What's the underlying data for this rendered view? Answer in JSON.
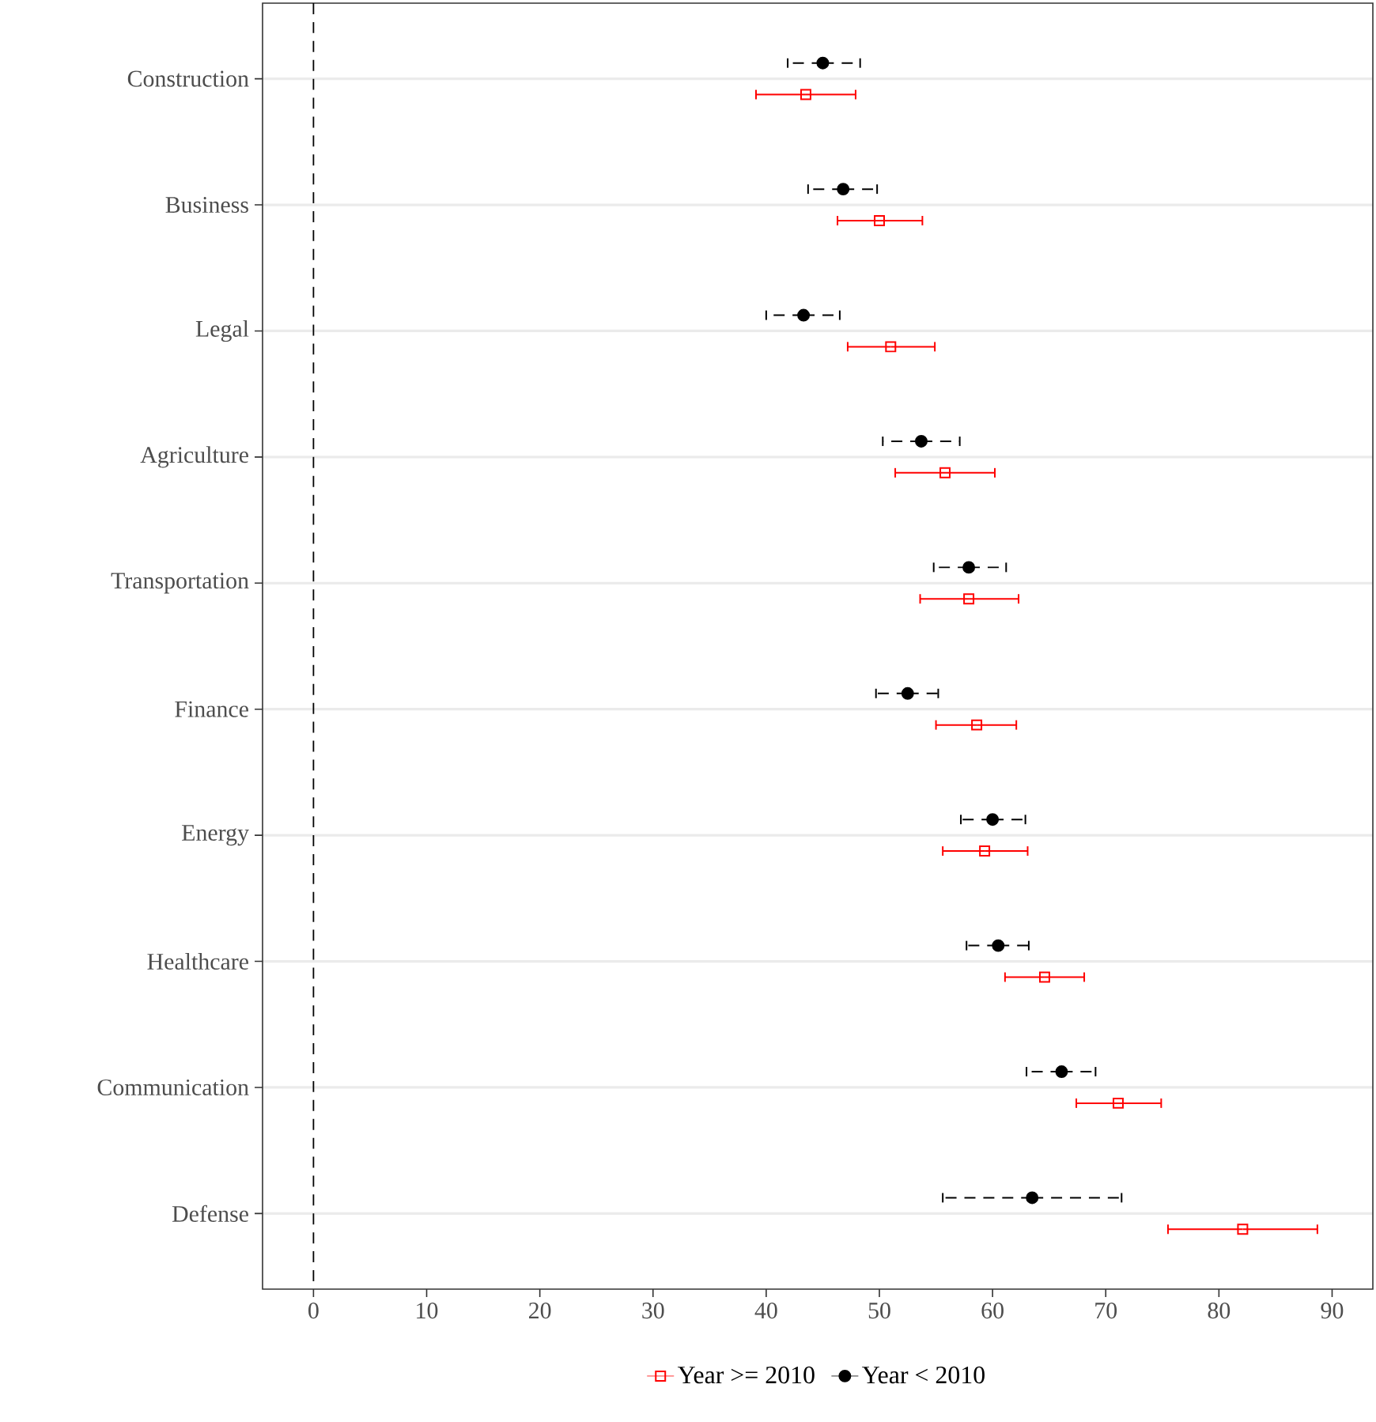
{
  "chart_data": {
    "type": "scatter",
    "orientation": "horizontal",
    "categories": [
      "Construction",
      "Business",
      "Legal",
      "Agriculture",
      "Transportation",
      "Finance",
      "Energy",
      "Healthcare",
      "Communication",
      "Defense"
    ],
    "series": [
      {
        "name": "Year >= 2010",
        "color": "#ff0000",
        "marker": "square",
        "line_style": "solid",
        "values": [
          43.5,
          50.0,
          51.0,
          55.8,
          57.9,
          58.6,
          59.3,
          64.6,
          71.1,
          82.1
        ],
        "errors": [
          [
            39.1,
            47.9
          ],
          [
            46.3,
            53.8
          ],
          [
            47.2,
            54.9
          ],
          [
            51.4,
            60.2
          ],
          [
            53.6,
            62.3
          ],
          [
            55.0,
            62.1
          ],
          [
            55.6,
            63.1
          ],
          [
            61.1,
            68.1
          ],
          [
            67.4,
            74.9
          ],
          [
            75.5,
            88.7
          ]
        ]
      },
      {
        "name": "Year < 2010",
        "color": "#000000",
        "marker": "circle",
        "line_style": "dashed",
        "values": [
          45.0,
          46.8,
          43.3,
          53.7,
          57.9,
          52.5,
          60.0,
          60.5,
          66.1,
          63.5
        ],
        "errors": [
          [
            41.9,
            48.3
          ],
          [
            43.7,
            49.8
          ],
          [
            40.0,
            46.5
          ],
          [
            50.3,
            57.1
          ],
          [
            54.8,
            61.2
          ],
          [
            49.7,
            55.2
          ],
          [
            57.2,
            62.9
          ],
          [
            57.7,
            63.2
          ],
          [
            63.0,
            69.1
          ],
          [
            55.6,
            71.4
          ]
        ]
      }
    ],
    "xlim": [
      -4.5,
      93.6
    ],
    "xticks": [
      0,
      10,
      20,
      30,
      40,
      50,
      60,
      70,
      80,
      90
    ],
    "grid": "y",
    "legend": "bottom",
    "ref_lines": [
      {
        "axis": "x",
        "value": 0,
        "color": "#000000",
        "line_style": "dashed"
      }
    ]
  }
}
